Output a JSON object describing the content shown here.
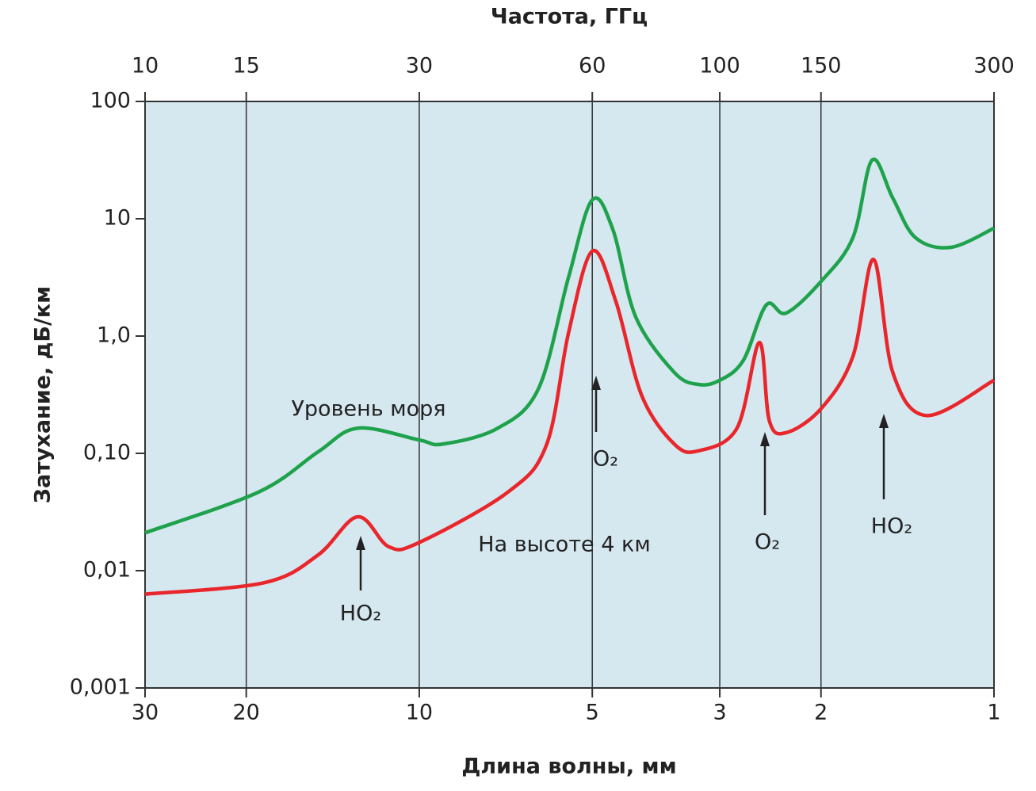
{
  "chart_data": {
    "type": "line",
    "x2_label": "Частота, ГГц",
    "x_label": "Длина волны, мм",
    "y_label": "Затухание, дБ/км",
    "log_x": true,
    "log_y": true,
    "grid": true,
    "background": "#d5e7ef",
    "xlim": [
      30,
      1
    ],
    "xticks": [
      30,
      20,
      10,
      5,
      3,
      2,
      1
    ],
    "x2lim": [
      10,
      300
    ],
    "x2ticks": [
      10,
      15,
      30,
      60,
      100,
      150,
      300
    ],
    "ylim": [
      0.001,
      100
    ],
    "yticks": [
      {
        "value": 0.001,
        "label": "0,001"
      },
      {
        "value": 0.01,
        "label": "0,01"
      },
      {
        "value": 0.1,
        "label": "0,10"
      },
      {
        "value": 1,
        "label": "1,0"
      },
      10,
      100
    ],
    "series": [
      {
        "name": "Уровень моря",
        "color": "#1ea24b",
        "x": [
          30,
          19,
          15,
          12.8,
          10,
          9.1,
          7.3,
          6.2,
          5.5,
          5.0,
          4.6,
          4.2,
          3.6,
          3.27,
          3.0,
          2.73,
          2.49,
          2.3,
          2.0,
          1.76,
          1.63,
          1.5,
          1.37,
          1.19,
          1.0
        ],
        "values": [
          0.021,
          0.047,
          0.103,
          0.164,
          0.13,
          0.12,
          0.164,
          0.358,
          3.16,
          14.5,
          8.0,
          1.45,
          0.49,
          0.387,
          0.42,
          0.62,
          1.84,
          1.57,
          2.92,
          6.9,
          31.6,
          15,
          6.9,
          5.7,
          8.3
        ]
      },
      {
        "name": "На высоте 4 км",
        "color": "#e8262b",
        "x": [
          30,
          18.6,
          15,
          12.8,
          11.3,
          10,
          7.0,
          6.0,
          5.5,
          5.0,
          4.55,
          4.1,
          3.6,
          3.27,
          2.8,
          2.56,
          2.46,
          2.3,
          2.0,
          1.76,
          1.62,
          1.5,
          1.31,
          1.0
        ],
        "values": [
          0.0063,
          0.0079,
          0.0136,
          0.0288,
          0.016,
          0.0174,
          0.047,
          0.12,
          1.06,
          5.3,
          1.98,
          0.31,
          0.12,
          0.105,
          0.164,
          0.88,
          0.19,
          0.15,
          0.24,
          0.67,
          4.5,
          0.49,
          0.21,
          0.42
        ]
      }
    ],
    "annotations": [
      "HO₂",
      "O₂",
      "O₂",
      "HO₂"
    ]
  }
}
